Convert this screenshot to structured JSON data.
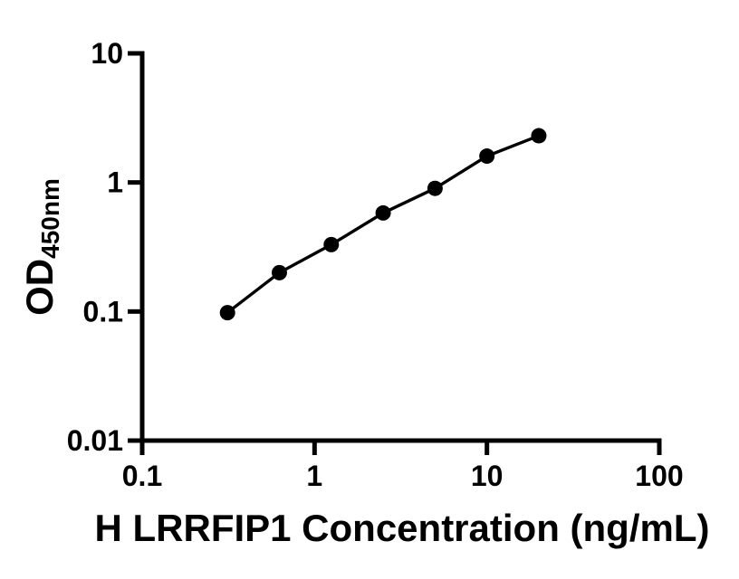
{
  "chart_data": {
    "type": "scatter",
    "title": "",
    "xlabel": "H LRRFIP1 Concentration (ng/mL)",
    "ylabel": "OD",
    "ylabel_subscript": "450nm",
    "xscale": "log",
    "yscale": "log",
    "xlim": [
      0.1,
      100
    ],
    "ylim": [
      0.01,
      10
    ],
    "x_ticks": [
      {
        "value": 0.1,
        "label": "0.1"
      },
      {
        "value": 1,
        "label": "1"
      },
      {
        "value": 10,
        "label": "10"
      },
      {
        "value": 100,
        "label": "100"
      }
    ],
    "y_ticks": [
      {
        "value": 10,
        "label": "10"
      },
      {
        "value": 1,
        "label": "1"
      },
      {
        "value": 0.1,
        "label": "0.1"
      },
      {
        "value": 0.01,
        "label": "0.01"
      }
    ],
    "series": [
      {
        "x": [
          0.3125,
          0.625,
          1.25,
          2.5,
          5,
          10,
          20
        ],
        "y": [
          0.098,
          0.2,
          0.33,
          0.58,
          0.9,
          1.6,
          2.3
        ]
      }
    ],
    "marker": {
      "shape": "circle",
      "color": "#000000",
      "radius": 8.5
    },
    "line": {
      "color": "#000000",
      "width": 3.4
    },
    "axis_color": "#000000",
    "background": "#ffffff",
    "grid": "off",
    "legend": "none"
  }
}
